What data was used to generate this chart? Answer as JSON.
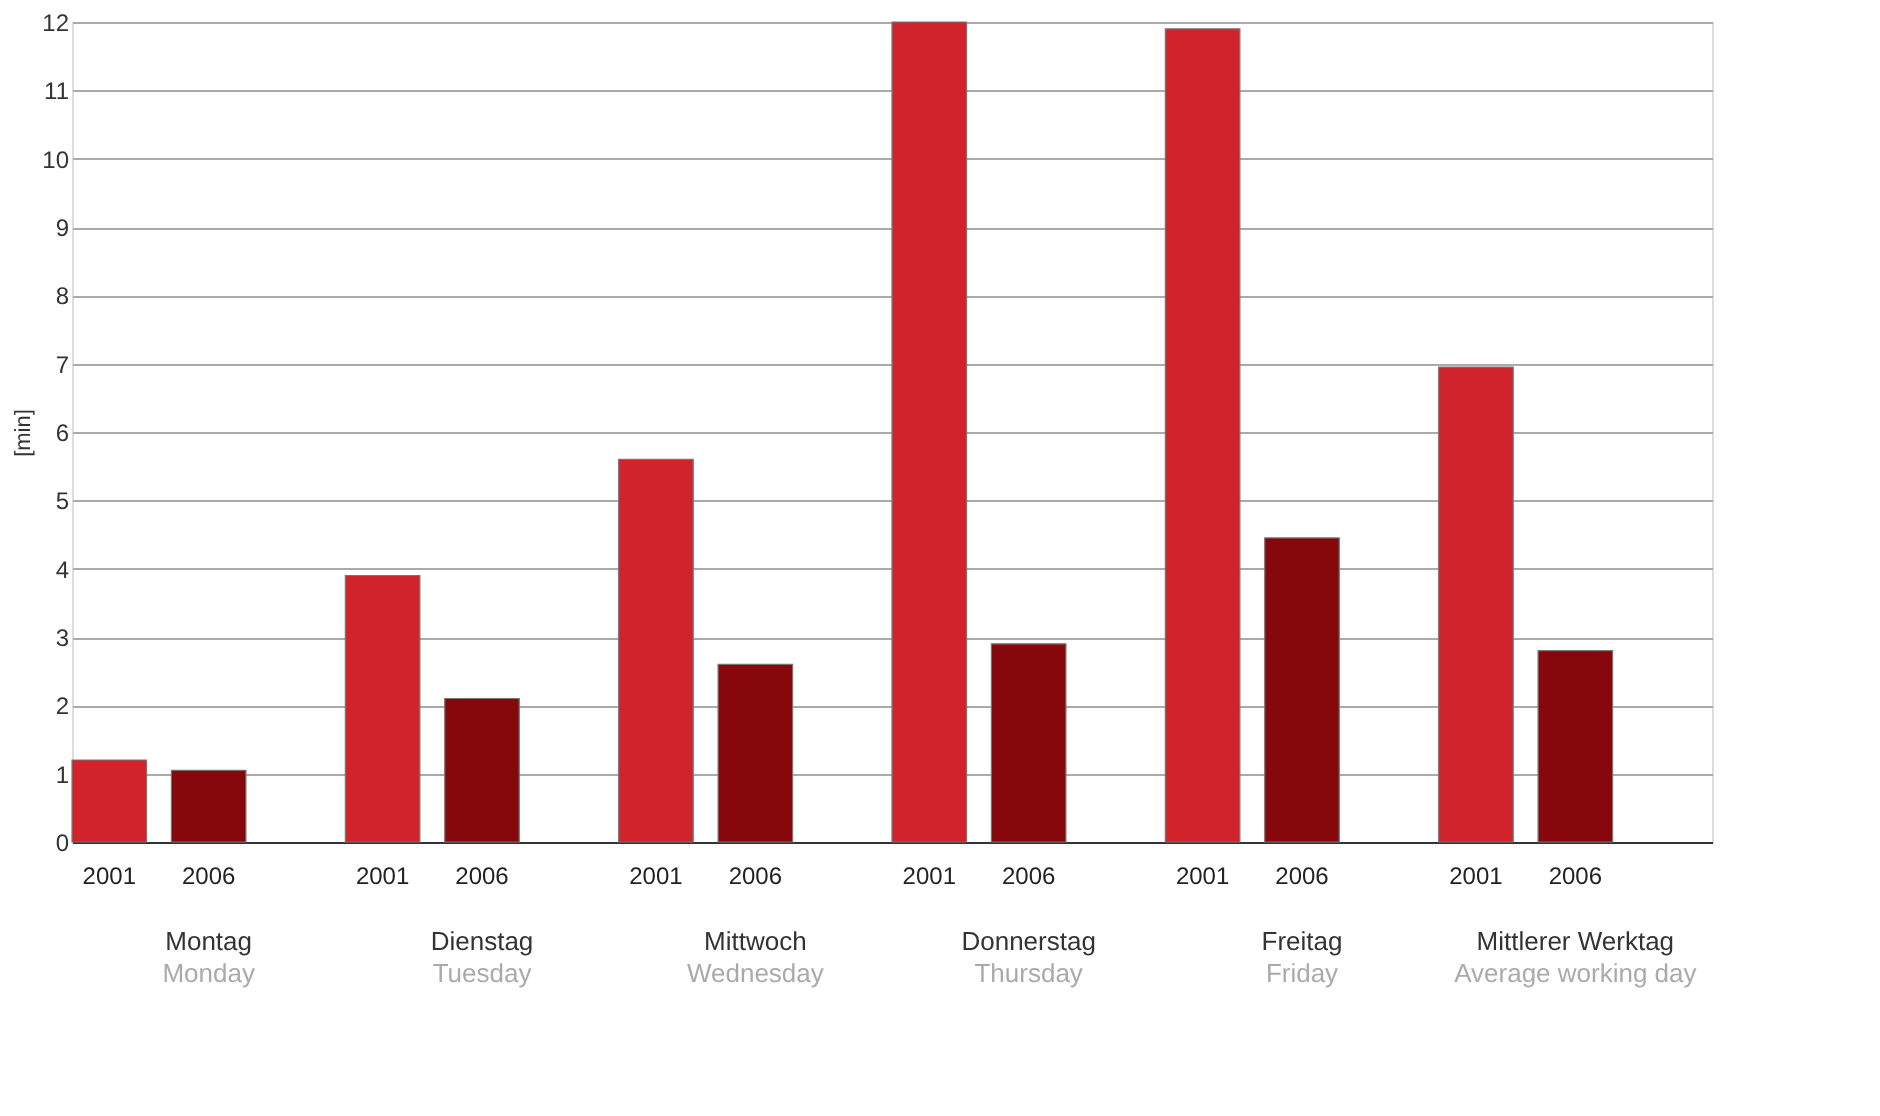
{
  "chart_data": {
    "type": "bar",
    "ylabel": "[min]",
    "categories": [
      "Montag\nMonday",
      "Dienstag\nTuesday",
      "Mittwoch\nWednesday",
      "Donnerstag\nThursday",
      "Freitag\nFriday",
      "Mittlerer Werktag\nAverage working day"
    ],
    "series": [
      {
        "name": "2001",
        "color": "#d0232b",
        "values": [
          1.2,
          3.9,
          5.6,
          12,
          11.9,
          6.95
        ]
      },
      {
        "name": "2006",
        "color": "#86070c",
        "values": [
          1.05,
          2.1,
          2.6,
          2.9,
          4.45,
          2.8
        ]
      }
    ],
    "ylim": [
      0,
      12
    ],
    "yticks": [
      0,
      1,
      2,
      3,
      4,
      5,
      6,
      7,
      8,
      9,
      10,
      11,
      12
    ],
    "grid": "y",
    "legend": false
  }
}
